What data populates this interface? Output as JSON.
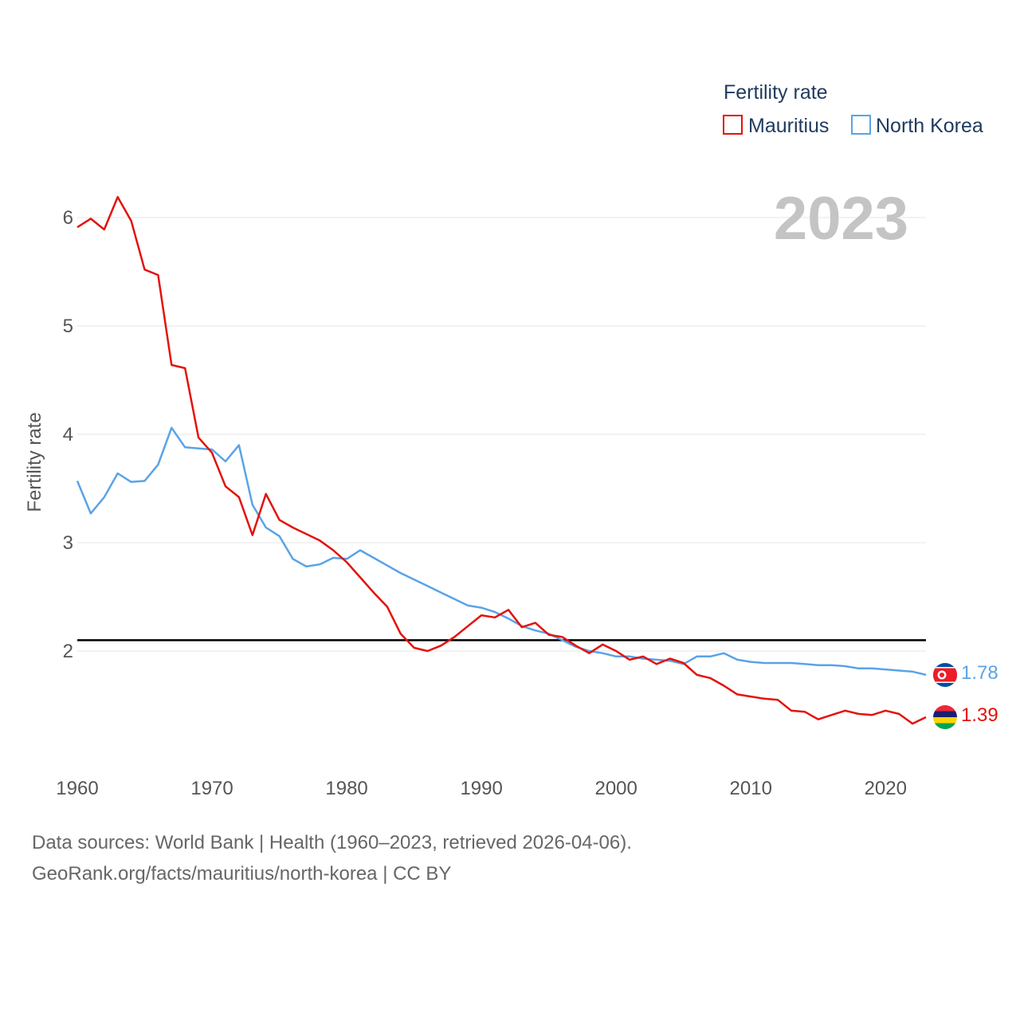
{
  "chart_data": {
    "type": "line",
    "title": "",
    "xlabel": "",
    "ylabel": "Fertility rate",
    "xlim": [
      1960,
      2023
    ],
    "ylim": [
      1,
      6.5
    ],
    "x_ticks": [
      1960,
      1970,
      1980,
      1990,
      2000,
      2010,
      2020
    ],
    "y_ticks": [
      2,
      3,
      4,
      5,
      6
    ],
    "reference_line": 2.1,
    "year_label": "2023",
    "legend": {
      "title": "Fertility rate",
      "placement": "top-right"
    },
    "x": [
      1960,
      1961,
      1962,
      1963,
      1964,
      1965,
      1966,
      1967,
      1968,
      1969,
      1970,
      1971,
      1972,
      1973,
      1974,
      1975,
      1976,
      1977,
      1978,
      1979,
      1980,
      1981,
      1982,
      1983,
      1984,
      1985,
      1986,
      1987,
      1988,
      1989,
      1990,
      1991,
      1992,
      1993,
      1994,
      1995,
      1996,
      1997,
      1998,
      1999,
      2000,
      2001,
      2002,
      2003,
      2004,
      2005,
      2006,
      2007,
      2008,
      2009,
      2010,
      2011,
      2012,
      2013,
      2014,
      2015,
      2016,
      2017,
      2018,
      2019,
      2020,
      2021,
      2022,
      2023
    ],
    "series": [
      {
        "name": "Mauritius",
        "color": "#e3120b",
        "end_label": "1.39",
        "values": [
          5.91,
          5.99,
          5.89,
          6.19,
          5.97,
          5.52,
          5.47,
          4.64,
          4.61,
          3.97,
          3.83,
          3.52,
          3.42,
          3.07,
          3.45,
          3.21,
          3.14,
          3.08,
          3.02,
          2.93,
          2.82,
          2.68,
          2.54,
          2.41,
          2.16,
          2.03,
          2.0,
          2.05,
          2.13,
          2.23,
          2.33,
          2.31,
          2.38,
          2.22,
          2.26,
          2.15,
          2.13,
          2.05,
          1.98,
          2.06,
          2.0,
          1.92,
          1.95,
          1.88,
          1.93,
          1.89,
          1.78,
          1.75,
          1.68,
          1.6,
          1.58,
          1.56,
          1.55,
          1.45,
          1.44,
          1.37,
          1.41,
          1.45,
          1.42,
          1.41,
          1.45,
          1.42,
          1.33,
          1.39
        ]
      },
      {
        "name": "North Korea",
        "color": "#5aa3e6",
        "end_label": "1.78",
        "values": [
          3.57,
          3.27,
          3.42,
          3.64,
          3.56,
          3.57,
          3.72,
          4.06,
          3.88,
          3.87,
          3.86,
          3.75,
          3.9,
          3.35,
          3.14,
          3.06,
          2.85,
          2.78,
          2.8,
          2.86,
          2.85,
          2.93,
          2.86,
          2.79,
          2.72,
          2.66,
          2.6,
          2.54,
          2.48,
          2.42,
          2.4,
          2.36,
          2.3,
          2.23,
          2.19,
          2.16,
          2.1,
          2.04,
          2.0,
          1.98,
          1.95,
          1.95,
          1.93,
          1.92,
          1.91,
          1.88,
          1.95,
          1.95,
          1.98,
          1.92,
          1.9,
          1.89,
          1.89,
          1.89,
          1.88,
          1.87,
          1.87,
          1.86,
          1.84,
          1.84,
          1.83,
          1.82,
          1.81,
          1.78
        ]
      }
    ]
  },
  "footer": {
    "sources": "Data sources: World Bank | Health (1960–2023, retrieved 2026-04-06).",
    "link": "GeoRank.org/facts/mauritius/north-korea | CC BY"
  }
}
